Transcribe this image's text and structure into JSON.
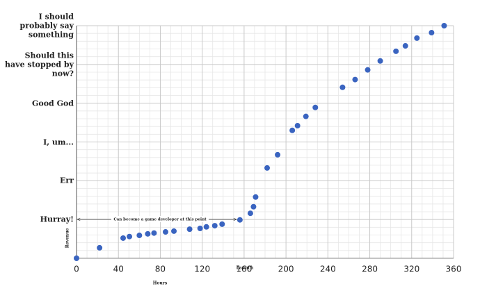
{
  "chart_data": {
    "type": "scatter",
    "x_label": "Hours",
    "y_label": "Revenue",
    "annotations": [
      "Can become a game developer at this point",
      "Launch"
    ],
    "color": "#3a64c0",
    "xlim": [
      0,
      360
    ],
    "xticks": [
      0,
      40,
      80,
      120,
      160,
      200,
      240,
      280,
      320,
      360
    ],
    "ylim": [
      0,
      6
    ],
    "yticks": [
      {
        "value": 1,
        "label": "Hurray!"
      },
      {
        "value": 2,
        "label": "Err"
      },
      {
        "value": 3,
        "label": "I, um..."
      },
      {
        "value": 4,
        "label": "Good God"
      },
      {
        "value": 5,
        "label": "Should this have stopped by now?"
      },
      {
        "value": 6,
        "label": "I should probably say something"
      }
    ],
    "grid": true,
    "minor_grid": true,
    "x": [
      0,
      22,
      44.5,
      50.5,
      60,
      68,
      74,
      85,
      93,
      108,
      118,
      124,
      132,
      139,
      156,
      166,
      169,
      171,
      182,
      192,
      206,
      211,
      219,
      228,
      254,
      266,
      278,
      290,
      305,
      314,
      325,
      339,
      351
    ],
    "values": [
      0,
      0.27,
      0.52,
      0.56,
      0.59,
      0.63,
      0.65,
      0.68,
      0.7,
      0.75,
      0.77,
      0.81,
      0.84,
      0.88,
      0.99,
      1.16,
      1.33,
      1.58,
      2.33,
      2.67,
      3.3,
      3.42,
      3.66,
      3.89,
      4.41,
      4.61,
      4.86,
      5.09,
      5.34,
      5.48,
      5.68,
      5.82,
      6.0
    ]
  }
}
